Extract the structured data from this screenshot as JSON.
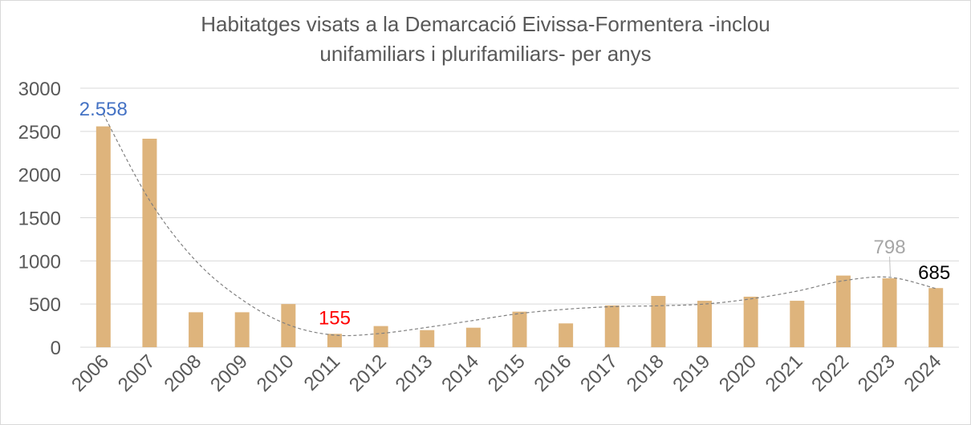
{
  "chart_data": {
    "type": "bar",
    "title_lines": [
      "Habitatges visats a la Demarcació Eivissa-Formentera -inclou",
      "unifamiliars i plurifamiliars- per anys"
    ],
    "xlabel": "",
    "ylabel": "",
    "ylim": [
      0,
      3000
    ],
    "yticks": [
      0,
      500,
      1000,
      1500,
      2000,
      2500,
      3000
    ],
    "grid": true,
    "categories": [
      "2006",
      "2007",
      "2008",
      "2009",
      "2010",
      "2011",
      "2012",
      "2013",
      "2014",
      "2015",
      "2016",
      "2017",
      "2018",
      "2019",
      "2020",
      "2021",
      "2022",
      "2023",
      "2024"
    ],
    "values": [
      2558,
      2415,
      405,
      405,
      500,
      155,
      245,
      198,
      226,
      412,
      276,
      484,
      594,
      538,
      585,
      538,
      830,
      798,
      685
    ],
    "trendline": {
      "type": "polynomial",
      "values": [
        2700,
        1700,
        1000,
        550,
        260,
        140,
        160,
        230,
        310,
        390,
        440,
        470,
        480,
        500,
        560,
        650,
        770,
        810,
        680
      ]
    },
    "data_labels": [
      {
        "index": 0,
        "text": "2.558",
        "color": "#4472c4"
      },
      {
        "index": 5,
        "text": "155",
        "color": "#ff0000"
      },
      {
        "index": 17,
        "text": "798",
        "color": "#a6a6a6"
      },
      {
        "index": 18,
        "text": "685",
        "color": "#000000"
      }
    ],
    "bar_color": "#deb47c"
  }
}
